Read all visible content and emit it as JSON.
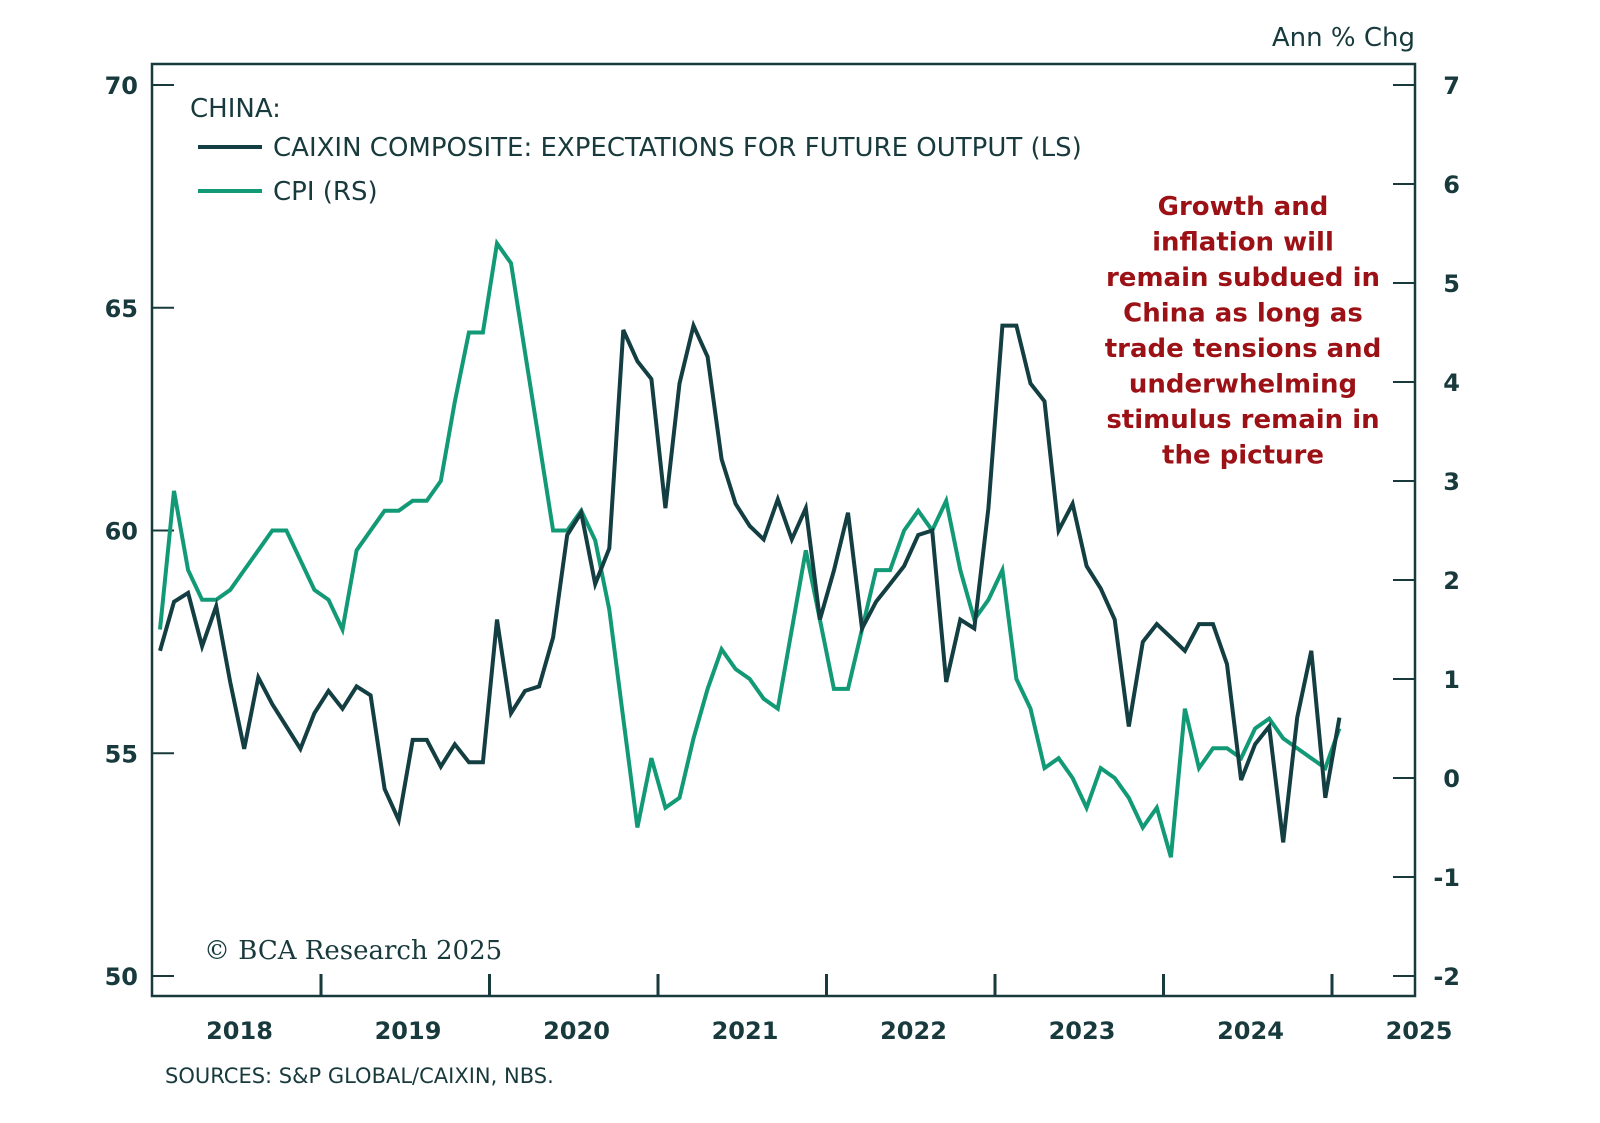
{
  "chart_data": {
    "type": "line",
    "legend_title": "CHINA:",
    "legend_placement": "top-left",
    "unit_label_right": "Ann % Chg",
    "annotation": [
      "Growth and",
      "inflation will",
      "remain subdued in",
      "China as long as",
      "trade tensions and",
      "underwhelming",
      "stimulus remain in",
      "the picture"
    ],
    "copyright": "© BCA Research 2025",
    "source": "SOURCES: S&P GLOBAL/CAIXIN, NBS.",
    "x_start": "2017-10",
    "x_ticks": [
      "2018",
      "2019",
      "2020",
      "2021",
      "2022",
      "2023",
      "2024",
      "2025"
    ],
    "x_range": [
      "2017-09",
      "2025-05"
    ],
    "y_left": {
      "label": "LS",
      "range": [
        50,
        70
      ],
      "ticks": [
        50,
        55,
        60,
        65,
        70
      ]
    },
    "y_right": {
      "label": "RS",
      "range": [
        -2,
        7
      ],
      "ticks": [
        -2,
        -1,
        0,
        1,
        2,
        3,
        4,
        5,
        6,
        7
      ]
    },
    "grid": false,
    "colors": {
      "caixin": "#133e42",
      "cpi": "#129a76",
      "annotation": "#9b1115",
      "axis": "#183a3d"
    },
    "series": [
      {
        "name": "CAIXIN COMPOSITE: EXPECTATIONS FOR FUTURE OUTPUT (LS)",
        "axis": "left",
        "values": [
          57.3,
          58.4,
          58.6,
          57.4,
          58.3,
          56.6,
          55.1,
          56.7,
          56.1,
          55.6,
          55.1,
          55.9,
          56.4,
          56.0,
          56.5,
          56.3,
          54.2,
          53.5,
          55.3,
          55.3,
          54.7,
          55.2,
          54.8,
          54.8,
          58.0,
          55.9,
          56.4,
          56.5,
          57.6,
          59.9,
          60.4,
          58.8,
          59.6,
          64.5,
          63.8,
          63.4,
          60.5,
          63.3,
          64.6,
          63.9,
          61.6,
          60.6,
          60.1,
          59.8,
          60.7,
          59.8,
          60.5,
          58.0,
          59.1,
          60.4,
          57.8,
          58.4,
          58.8,
          59.2,
          59.9,
          60.0,
          56.6,
          58.0,
          57.8,
          60.5,
          64.6,
          64.6,
          63.3,
          62.9,
          60.0,
          60.6,
          59.2,
          58.7,
          58.0,
          55.6,
          57.5,
          57.9,
          57.6,
          57.3,
          57.9,
          57.9,
          57.0,
          54.4,
          55.2,
          55.6,
          53.0,
          55.8,
          57.3,
          54.0,
          55.8
        ]
      },
      {
        "name": "CPI (RS)",
        "axis": "right",
        "values": [
          1.5,
          2.9,
          2.1,
          1.8,
          1.8,
          1.9,
          2.1,
          2.3,
          2.5,
          2.5,
          2.2,
          1.9,
          1.8,
          1.5,
          2.3,
          2.5,
          2.7,
          2.7,
          2.8,
          2.8,
          3.0,
          3.8,
          4.5,
          4.5,
          5.4,
          5.2,
          4.3,
          3.4,
          2.5,
          2.5,
          2.7,
          2.4,
          1.7,
          0.6,
          -0.5,
          0.2,
          -0.3,
          -0.2,
          0.4,
          0.9,
          1.3,
          1.1,
          1.0,
          0.8,
          0.7,
          1.5,
          2.3,
          1.6,
          0.9,
          0.9,
          1.5,
          2.1,
          2.1,
          2.5,
          2.7,
          2.5,
          2.8,
          2.1,
          1.6,
          1.8,
          2.1,
          1.0,
          0.7,
          0.1,
          0.2,
          0.0,
          -0.3,
          0.1,
          0.0,
          -0.2,
          -0.5,
          -0.3,
          -0.8,
          0.7,
          0.1,
          0.3,
          0.3,
          0.2,
          0.5,
          0.6,
          0.4,
          0.3,
          0.2,
          0.1,
          0.5
        ]
      }
    ]
  }
}
